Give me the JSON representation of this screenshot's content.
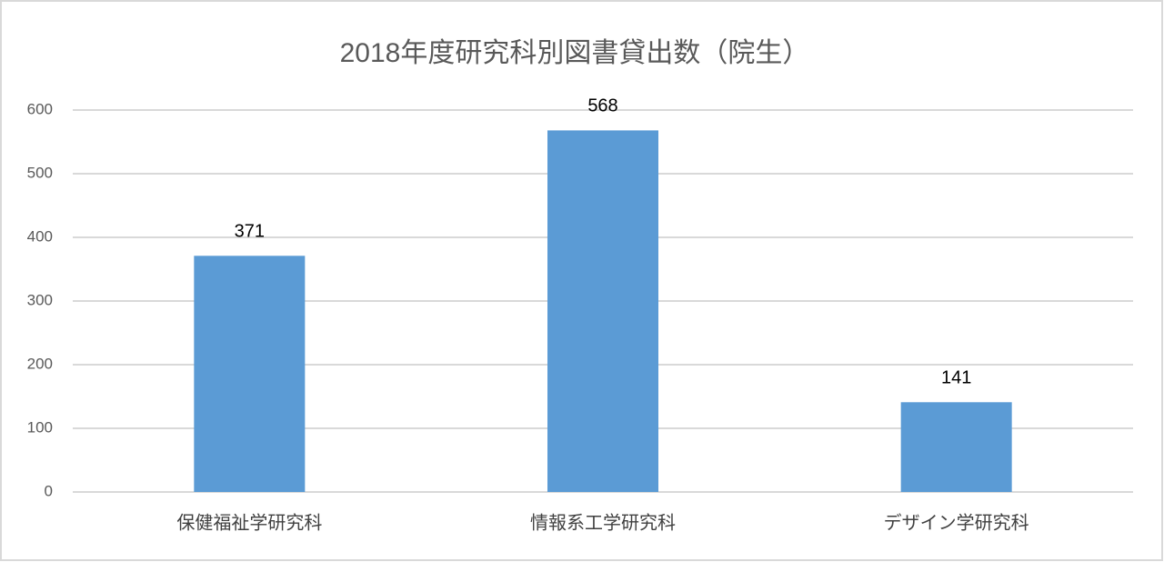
{
  "chart_data": {
    "type": "bar",
    "title": "2018年度研究科別図書貸出数（院生）",
    "categories": [
      "保健福祉学研究科",
      "情報系工学研究科",
      "デザイン学研究科"
    ],
    "values": [
      371,
      568,
      141
    ],
    "color": "#5b9bd5",
    "ylim": [
      0,
      600
    ],
    "yticks": [
      0,
      100,
      200,
      300,
      400,
      500,
      600
    ],
    "grid": true
  }
}
